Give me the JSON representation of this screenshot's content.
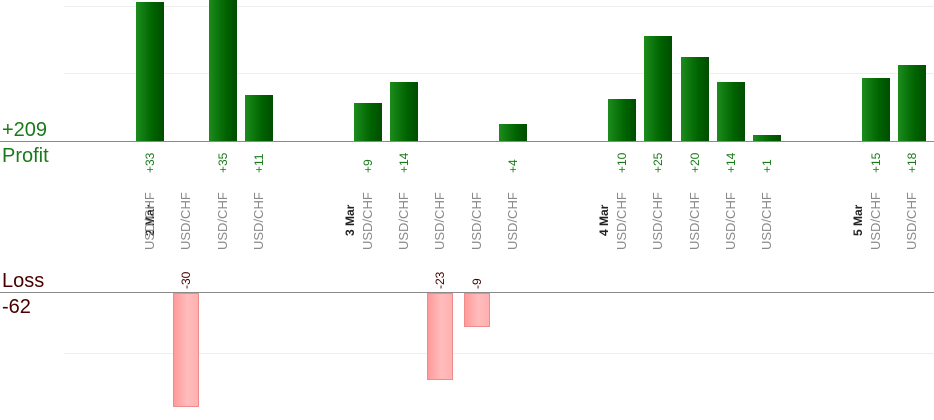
{
  "summary": {
    "profit_total": "+209",
    "profit_label": "Profit",
    "loss_label": "Loss",
    "loss_total": "-62"
  },
  "colors": {
    "profit": "#006400",
    "profit_text": "#1a7a1a",
    "loss": "#ffb0b0",
    "loss_text": "#4a0000"
  },
  "chart_data": {
    "type": "bar",
    "title": "",
    "xlabel": "",
    "ylabel": "",
    "grid": true,
    "profit_ylim": [
      0,
      45
    ],
    "loss_ylim": [
      -38,
      0
    ],
    "date_groups": [
      "2 Mar",
      "3 Mar",
      "4 Mar",
      "5 Mar"
    ],
    "trades": [
      {
        "group": "2 Mar",
        "pair": "USD/CHF",
        "value": 33,
        "label": "+33"
      },
      {
        "group": "2 Mar",
        "pair": "USD/CHF",
        "value": -30,
        "label": "-30"
      },
      {
        "group": "2 Mar",
        "pair": "USD/CHF",
        "value": 35,
        "label": "+35"
      },
      {
        "group": "2 Mar",
        "pair": "USD/CHF",
        "value": 11,
        "label": "+11"
      },
      {
        "group": "3 Mar",
        "pair": "USD/CHF",
        "value": 9,
        "label": "+9"
      },
      {
        "group": "3 Mar",
        "pair": "USD/CHF",
        "value": 14,
        "label": "+14"
      },
      {
        "group": "3 Mar",
        "pair": "USD/CHF",
        "value": -23,
        "label": "-23"
      },
      {
        "group": "3 Mar",
        "pair": "USD/CHF",
        "value": -9,
        "label": "-9"
      },
      {
        "group": "3 Mar",
        "pair": "USD/CHF",
        "value": 4,
        "label": "+4"
      },
      {
        "group": "4 Mar",
        "pair": "USD/CHF",
        "value": 10,
        "label": "+10"
      },
      {
        "group": "4 Mar",
        "pair": "USD/CHF",
        "value": 25,
        "label": "+25"
      },
      {
        "group": "4 Mar",
        "pair": "USD/CHF",
        "value": 20,
        "label": "+20"
      },
      {
        "group": "4 Mar",
        "pair": "USD/CHF",
        "value": 14,
        "label": "+14"
      },
      {
        "group": "4 Mar",
        "pair": "USD/CHF",
        "value": 1,
        "label": "+1"
      },
      {
        "group": "5 Mar",
        "pair": "USD/CHF",
        "value": 15,
        "label": "+15"
      },
      {
        "group": "5 Mar",
        "pair": "USD/CHF",
        "value": 18,
        "label": "+18"
      }
    ]
  }
}
